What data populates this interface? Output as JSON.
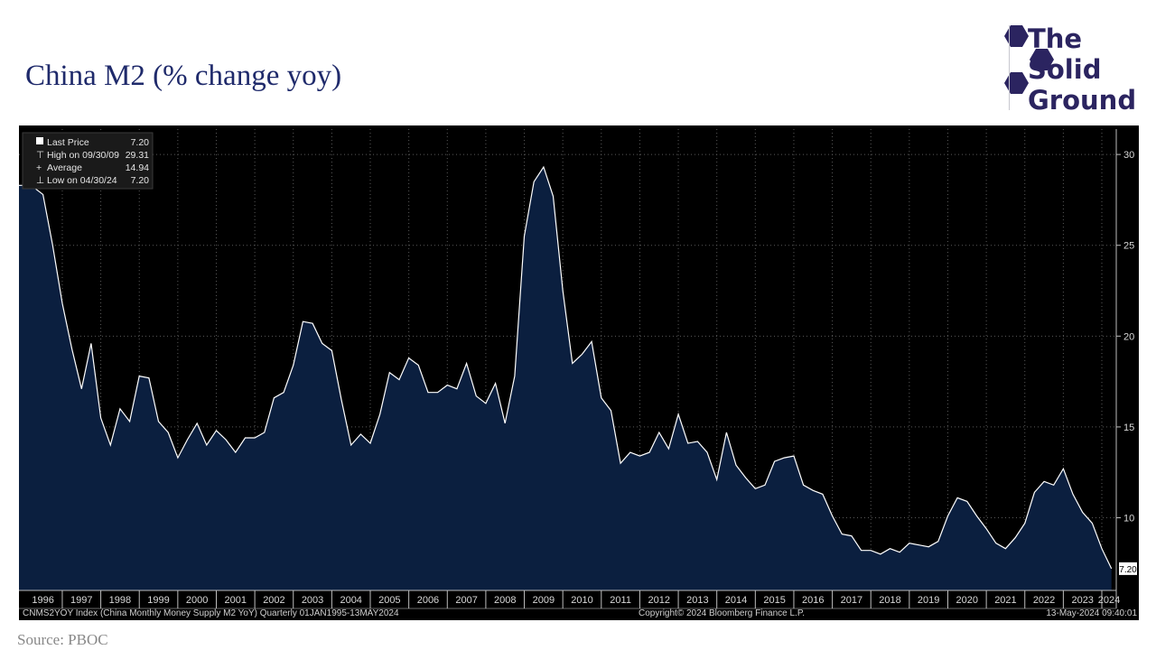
{
  "page": {
    "title": "China M2 (% change yoy)",
    "source": "Source: PBOC"
  },
  "logo": {
    "line1": "The",
    "line2": "Solid",
    "line3": "Ground",
    "color": "#2b2460"
  },
  "legend": {
    "items": [
      {
        "label": "Last Price",
        "value": "7.20"
      },
      {
        "label": "High on 09/30/09",
        "value": "29.31"
      },
      {
        "label": "Average",
        "value": "14.94"
      },
      {
        "label": "Low on 04/30/24",
        "value": "7.20"
      }
    ]
  },
  "footer": {
    "left": "CNMS2YOY Index (China Monthly Money Supply M2 YoY)  Quarterly 01JAN1995-13MAY2024",
    "center": "Copyright© 2024 Bloomberg Finance L.P.",
    "right": "13-May-2024 09:40:01"
  },
  "last_value_label": "7.20",
  "colors": {
    "background": "#000000",
    "area_fill": "#0b1f3f",
    "line": "#ffffff",
    "title": "#1f2a6b"
  },
  "chart_data": {
    "type": "area",
    "ylim": [
      6,
      31
    ],
    "yticks": [
      10,
      15,
      20,
      25,
      30
    ],
    "xlim": [
      1995.875,
      2024.375
    ],
    "grid": true,
    "year_labels": [
      "1996",
      "1997",
      "1998",
      "1999",
      "2000",
      "2001",
      "2002",
      "2003",
      "2004",
      "2005",
      "2006",
      "2007",
      "2008",
      "2009",
      "2010",
      "2011",
      "2012",
      "2013",
      "2014",
      "2015",
      "2016",
      "2017",
      "2018",
      "2019",
      "2020",
      "2021",
      "2022",
      "2023",
      "2024"
    ],
    "series": [
      {
        "points": [
          [
            1995.875,
            28.3
          ],
          [
            1996.0,
            28.3
          ],
          [
            1996.25,
            28.2
          ],
          [
            1996.5,
            27.8
          ],
          [
            1996.75,
            25.0
          ],
          [
            1997.0,
            21.8
          ],
          [
            1997.25,
            19.3
          ],
          [
            1997.5,
            17.1
          ],
          [
            1997.75,
            19.6
          ],
          [
            1998.0,
            15.5
          ],
          [
            1998.25,
            14.0
          ],
          [
            1998.5,
            16.0
          ],
          [
            1998.75,
            15.3
          ],
          [
            1999.0,
            17.8
          ],
          [
            1999.25,
            17.7
          ],
          [
            1999.5,
            15.3
          ],
          [
            1999.75,
            14.7
          ],
          [
            2000.0,
            13.3
          ],
          [
            2000.25,
            14.3
          ],
          [
            2000.5,
            15.2
          ],
          [
            2000.75,
            14.0
          ],
          [
            2001.0,
            14.8
          ],
          [
            2001.25,
            14.3
          ],
          [
            2001.5,
            13.6
          ],
          [
            2001.75,
            14.4
          ],
          [
            2002.0,
            14.4
          ],
          [
            2002.25,
            14.7
          ],
          [
            2002.5,
            16.6
          ],
          [
            2002.75,
            16.9
          ],
          [
            2003.0,
            18.4
          ],
          [
            2003.25,
            20.8
          ],
          [
            2003.5,
            20.7
          ],
          [
            2003.75,
            19.6
          ],
          [
            2004.0,
            19.2
          ],
          [
            2004.25,
            16.5
          ],
          [
            2004.5,
            14.0
          ],
          [
            2004.75,
            14.6
          ],
          [
            2005.0,
            14.1
          ],
          [
            2005.25,
            15.7
          ],
          [
            2005.5,
            18.0
          ],
          [
            2005.75,
            17.6
          ],
          [
            2006.0,
            18.8
          ],
          [
            2006.25,
            18.4
          ],
          [
            2006.5,
            16.9
          ],
          [
            2006.75,
            16.9
          ],
          [
            2007.0,
            17.3
          ],
          [
            2007.25,
            17.1
          ],
          [
            2007.5,
            18.5
          ],
          [
            2007.75,
            16.7
          ],
          [
            2008.0,
            16.3
          ],
          [
            2008.25,
            17.4
          ],
          [
            2008.5,
            15.2
          ],
          [
            2008.75,
            17.8
          ],
          [
            2009.0,
            25.5
          ],
          [
            2009.25,
            28.5
          ],
          [
            2009.5,
            29.31
          ],
          [
            2009.75,
            27.7
          ],
          [
            2010.0,
            22.5
          ],
          [
            2010.25,
            18.5
          ],
          [
            2010.5,
            19.0
          ],
          [
            2010.75,
            19.7
          ],
          [
            2011.0,
            16.6
          ],
          [
            2011.25,
            15.9
          ],
          [
            2011.5,
            13.0
          ],
          [
            2011.75,
            13.6
          ],
          [
            2012.0,
            13.4
          ],
          [
            2012.25,
            13.6
          ],
          [
            2012.5,
            14.7
          ],
          [
            2012.75,
            13.8
          ],
          [
            2013.0,
            15.7
          ],
          [
            2013.25,
            14.1
          ],
          [
            2013.5,
            14.2
          ],
          [
            2013.75,
            13.6
          ],
          [
            2014.0,
            12.1
          ],
          [
            2014.25,
            14.7
          ],
          [
            2014.5,
            12.9
          ],
          [
            2014.75,
            12.2
          ],
          [
            2015.0,
            11.6
          ],
          [
            2015.25,
            11.8
          ],
          [
            2015.5,
            13.1
          ],
          [
            2015.75,
            13.3
          ],
          [
            2016.0,
            13.4
          ],
          [
            2016.25,
            11.8
          ],
          [
            2016.5,
            11.5
          ],
          [
            2016.75,
            11.3
          ],
          [
            2017.0,
            10.1
          ],
          [
            2017.25,
            9.1
          ],
          [
            2017.5,
            9.0
          ],
          [
            2017.75,
            8.2
          ],
          [
            2018.0,
            8.2
          ],
          [
            2018.25,
            8.0
          ],
          [
            2018.5,
            8.3
          ],
          [
            2018.75,
            8.1
          ],
          [
            2019.0,
            8.6
          ],
          [
            2019.25,
            8.5
          ],
          [
            2019.5,
            8.4
          ],
          [
            2019.75,
            8.7
          ],
          [
            2020.0,
            10.1
          ],
          [
            2020.25,
            11.1
          ],
          [
            2020.5,
            10.9
          ],
          [
            2020.75,
            10.1
          ],
          [
            2021.0,
            9.4
          ],
          [
            2021.25,
            8.6
          ],
          [
            2021.5,
            8.3
          ],
          [
            2021.75,
            8.9
          ],
          [
            2022.0,
            9.7
          ],
          [
            2022.25,
            11.4
          ],
          [
            2022.5,
            12.0
          ],
          [
            2022.75,
            11.8
          ],
          [
            2023.0,
            12.7
          ],
          [
            2023.25,
            11.3
          ],
          [
            2023.5,
            10.3
          ],
          [
            2023.75,
            9.7
          ],
          [
            2024.0,
            8.3
          ],
          [
            2024.25,
            7.2
          ]
        ]
      }
    ]
  }
}
